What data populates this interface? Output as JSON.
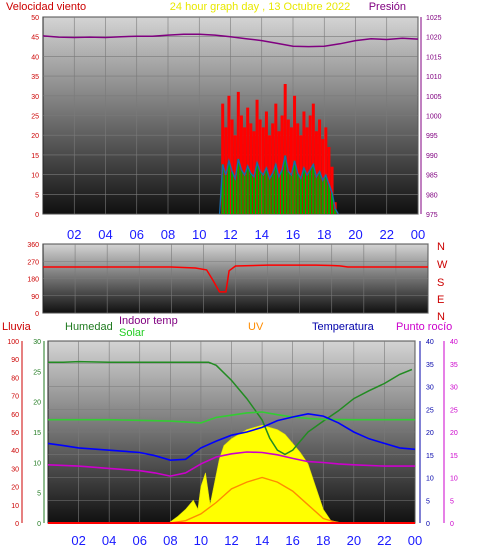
{
  "wind_panel": {
    "title": "24 hour graph day , 13 Octubre 2022",
    "left_label": "Velocidad viento",
    "right_label": "Presión"
  },
  "direction_panel": {
    "compass": [
      "N",
      "W",
      "S",
      "E",
      "N"
    ]
  },
  "bottom_panel": {
    "labels": {
      "rain": "Lluvia",
      "humidity": "Humedad",
      "indoor": "Indoor temp",
      "solar": "Solar",
      "uv": "UV",
      "temperature": "Temperatura",
      "dewpoint": "Punto rocío"
    }
  },
  "time_ticks": [
    "02",
    "04",
    "06",
    "08",
    "10",
    "12",
    "14",
    "16",
    "18",
    "20",
    "22",
    "00"
  ],
  "colors": {
    "wind_gust": "#ff0000",
    "wind_avg": "#00aa00",
    "wind_mean_line": "#1a6aaa",
    "pressure": "#800080",
    "direction": "#ff0000",
    "humidity": "#228b22",
    "indoor": "#33cc33",
    "solar": "#ffff00",
    "uv": "#ff8c00",
    "temperature": "#0000ff",
    "dewpoint": "#cc00cc",
    "rain": "#ff0000",
    "time_label": "#1a1aff"
  },
  "chart_data": [
    {
      "type": "line",
      "title": "24 hour graph day , 13 Octubre 2022",
      "x_unit": "hours",
      "xlim": [
        0,
        24
      ],
      "x_tick_labels": [
        "02",
        "04",
        "06",
        "08",
        "10",
        "12",
        "14",
        "16",
        "18",
        "20",
        "22",
        "00"
      ],
      "ylim_left": [
        0,
        50
      ],
      "y_ticks_left": [
        0,
        5,
        10,
        15,
        20,
        25,
        30,
        35,
        40,
        45,
        50
      ],
      "ylim_right": [
        975,
        1025
      ],
      "y_ticks_right": [
        975,
        980,
        985,
        990,
        995,
        1000,
        1005,
        1010,
        1015,
        1020,
        1025
      ],
      "series": [
        {
          "name": "Velocidad viento",
          "axis": "left",
          "x": [
            11.3,
            11.5,
            11.7,
            11.9,
            12.1,
            12.3,
            12.5,
            12.7,
            12.9,
            13.1,
            13.3,
            13.5,
            13.7,
            13.9,
            14.1,
            14.3,
            14.5,
            14.7,
            14.9,
            15.1,
            15.3,
            15.5,
            15.7,
            15.9,
            16.1,
            16.3,
            16.5,
            16.7,
            16.9,
            17.1,
            17.3,
            17.5,
            17.7,
            17.9,
            18.1,
            18.3,
            18.5,
            18.7,
            18.9
          ],
          "values": [
            0,
            28,
            22,
            30,
            24,
            20,
            31,
            25,
            22,
            27,
            23,
            21,
            29,
            24,
            22,
            26,
            20,
            23,
            28,
            21,
            25,
            33,
            24,
            22,
            30,
            23,
            20,
            26,
            22,
            25,
            28,
            21,
            24,
            19,
            22,
            17,
            12,
            3,
            0
          ]
        },
        {
          "name": "Presión",
          "axis": "right",
          "x": [
            0,
            1,
            2,
            3,
            4,
            5,
            6,
            7,
            8,
            9,
            10,
            11,
            12,
            13,
            14,
            15,
            16,
            17,
            18,
            19,
            20,
            21,
            22,
            23,
            24
          ],
          "values": [
            1020.2,
            1019.9,
            1019.8,
            1019.9,
            1019.8,
            1020.0,
            1020.1,
            1020.1,
            1020.4,
            1020.6,
            1020.6,
            1020.4,
            1020.0,
            1019.5,
            1019.0,
            1018.3,
            1017.6,
            1017.5,
            1017.6,
            1018.2,
            1019.0,
            1019.5,
            1019.3,
            1019.6,
            1019.4
          ]
        }
      ]
    },
    {
      "type": "line",
      "x_unit": "hours",
      "xlim": [
        0,
        24
      ],
      "ylim": [
        0,
        360
      ],
      "y_ticks": [
        0,
        90,
        180,
        270,
        360
      ],
      "series": [
        {
          "name": "direction",
          "x": [
            0,
            4,
            8,
            9.5,
            10.2,
            10.6,
            11.0,
            11.4,
            11.6,
            12.0,
            14,
            16,
            17,
            18,
            18.5,
            19,
            20,
            22,
            24
          ],
          "values": [
            240,
            240,
            240,
            235,
            225,
            170,
            110,
            110,
            220,
            245,
            250,
            250,
            250,
            248,
            246,
            240,
            240,
            240,
            240
          ]
        }
      ]
    },
    {
      "type": "line",
      "x_unit": "hours",
      "xlim": [
        0,
        24
      ],
      "axes": {
        "rain": [
          0,
          100
        ],
        "humidity": [
          0,
          30
        ],
        "temperature": [
          0,
          40
        ],
        "dewpoint": [
          0,
          40
        ]
      },
      "series": [
        {
          "name": "Humedad",
          "axis": "humidity",
          "x": [
            0,
            1,
            2,
            4,
            6,
            8,
            10,
            10.5,
            11,
            12,
            13,
            14,
            14.5,
            15,
            15.5,
            16,
            16.5,
            17,
            18,
            19,
            20,
            21,
            22,
            23,
            23.8
          ],
          "values": [
            26.5,
            26.5,
            26.6,
            26.5,
            26.5,
            26.5,
            26.5,
            26.5,
            26.0,
            23.5,
            20.5,
            17.0,
            14.0,
            12.0,
            11.3,
            12.0,
            13.5,
            15.0,
            16.8,
            18.5,
            20.5,
            21.8,
            23.0,
            24.5,
            25.3
          ]
        },
        {
          "name": "Indoor temp",
          "axis": "temperature",
          "x": [
            0,
            4,
            8,
            10,
            11,
            12,
            13,
            14,
            15,
            16,
            17,
            18,
            20,
            22,
            24
          ],
          "values": [
            22.7,
            22.7,
            22.4,
            22.0,
            23.2,
            23.7,
            24.2,
            24.4,
            23.8,
            23.3,
            23.0,
            22.8,
            22.7,
            22.7,
            22.7
          ]
        },
        {
          "name": "Temperatura",
          "axis": "temperature",
          "x": [
            0,
            1,
            2,
            4,
            6,
            7,
            8,
            9,
            10,
            11,
            12,
            13,
            14,
            15,
            16,
            17,
            18,
            19,
            20,
            21,
            22,
            23,
            24
          ],
          "values": [
            17.5,
            17.0,
            16.5,
            16.0,
            15.5,
            14.8,
            13.8,
            14.0,
            16.5,
            18.0,
            19.3,
            20.0,
            21.0,
            22.5,
            23.3,
            24.0,
            23.5,
            22.0,
            20.0,
            18.5,
            17.5,
            16.5,
            16.2
          ]
        },
        {
          "name": "Punto rocío",
          "axis": "dewpoint",
          "x": [
            0,
            2,
            4,
            6,
            7,
            8,
            9,
            10,
            11,
            12,
            13,
            14,
            15,
            16,
            17,
            18,
            19,
            20,
            22,
            24
          ],
          "values": [
            12.8,
            12.5,
            12.0,
            11.5,
            11.0,
            10.3,
            11.0,
            13.0,
            14.5,
            15.2,
            15.6,
            15.5,
            15.0,
            14.2,
            13.5,
            13.3,
            13.0,
            12.8,
            12.5,
            12.5
          ]
        },
        {
          "name": "Solar",
          "axis": "temperature",
          "x": [
            7.9,
            8.5,
            9,
            9.5,
            9.8,
            10,
            10.3,
            10.6,
            10.9,
            11.2,
            11.5,
            12,
            12.5,
            13,
            13.5,
            14,
            14.5,
            15,
            15.5,
            16,
            16.5,
            17,
            17.5,
            18,
            18.5,
            19.3
          ],
          "values": [
            0,
            1.5,
            3,
            5,
            3,
            8,
            11,
            4,
            9,
            14,
            17,
            18.5,
            19.5,
            20.5,
            21.0,
            21.5,
            21.0,
            20.5,
            19.5,
            17.5,
            15.5,
            13.0,
            8.0,
            3.0,
            0.5,
            0
          ]
        },
        {
          "name": "UV",
          "axis": "temperature",
          "x": [
            8,
            9,
            10,
            11,
            12,
            13,
            14,
            15,
            16,
            17,
            18,
            19
          ],
          "values": [
            0,
            0.5,
            2.0,
            4.5,
            7.5,
            9.0,
            10.0,
            9.0,
            7.0,
            4.0,
            1.0,
            0
          ]
        },
        {
          "name": "Lluvia",
          "axis": "rain",
          "x": [
            0,
            24
          ],
          "values": [
            0,
            0
          ]
        }
      ]
    }
  ]
}
